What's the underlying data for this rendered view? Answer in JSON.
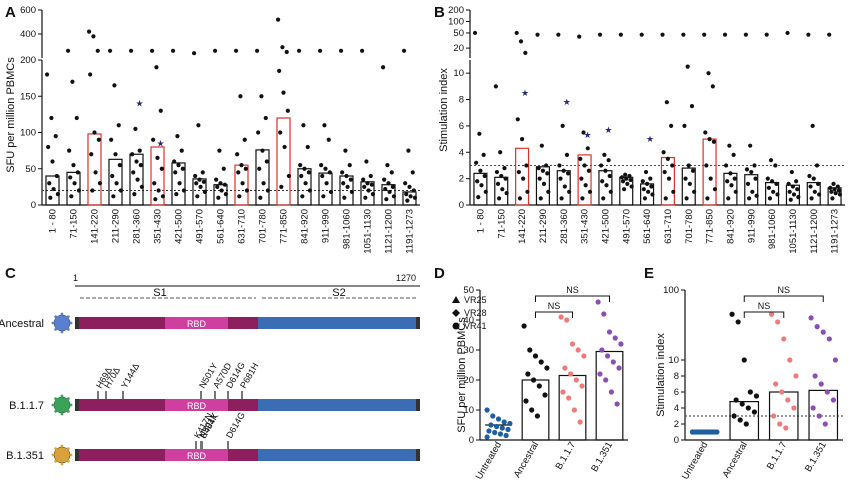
{
  "panels": {
    "A": "A",
    "B": "B",
    "C": "C",
    "D": "D",
    "E": "E"
  },
  "colors": {
    "highlight": "#d9342b",
    "ancestral": "#111111",
    "b117": "#f07a7a",
    "b1351": "#8a4fb0",
    "untreated": "#1d5f9f",
    "star": "#2a2a7a",
    "s1": "#8e1f5f",
    "rbd": "#cf3f9f",
    "s2": "#3a6db3"
  },
  "chart_data": [
    {
      "panel": "A",
      "type": "bar",
      "ylabel": "SFU per million PBMCs",
      "yaxis": {
        "lower_ticks": [
          0,
          50,
          100,
          150,
          200
        ],
        "upper_ticks": [
          200,
          400,
          600
        ],
        "lower_range": [
          0,
          200
        ],
        "upper_range": [
          200,
          600
        ]
      },
      "threshold": 20,
      "categories": [
        "1 - 80",
        "71-150",
        "141-220",
        "211-290",
        "281-360",
        "351-430",
        "421-500",
        "491-570",
        "561-640",
        "631-710",
        "701-780",
        "771-850",
        "841-920",
        "911-990",
        "981-1060",
        "1051-1130",
        "1121-1200",
        "1191-1273"
      ],
      "values": [
        40,
        45,
        98,
        63,
        70,
        80,
        58,
        36,
        28,
        55,
        76,
        120,
        50,
        44,
        40,
        32,
        28,
        18
      ],
      "highlighted": [
        2,
        5,
        9,
        11
      ],
      "points": [
        [
          180,
          120,
          95,
          80,
          60,
          40,
          30,
          22,
          15,
          10
        ],
        [
          260,
          170,
          120,
          75,
          55,
          45,
          38,
          30,
          20,
          12
        ],
        [
          420,
          380,
          260,
          180,
          100,
          90,
          70,
          45,
          30,
          20
        ],
        [
          260,
          165,
          110,
          90,
          70,
          55,
          40,
          30,
          20,
          12
        ],
        [
          260,
          105,
          75,
          70,
          60,
          55,
          45,
          35,
          25,
          15
        ],
        [
          260,
          190,
          130,
          90,
          65,
          50,
          30,
          20,
          12,
          8
        ],
        [
          260,
          95,
          75,
          60,
          55,
          50,
          45,
          30,
          20,
          15
        ],
        [
          240,
          110,
          45,
          40,
          35,
          32,
          30,
          25,
          18,
          12
        ],
        [
          260,
          75,
          50,
          35,
          30,
          28,
          25,
          20,
          15,
          10
        ],
        [
          260,
          150,
          90,
          70,
          55,
          50,
          45,
          30,
          20,
          12
        ],
        [
          260,
          150,
          120,
          100,
          75,
          60,
          50,
          30,
          20,
          10
        ],
        [
          520,
          290,
          250,
          185,
          155,
          130,
          100,
          80,
          40,
          25
        ],
        [
          260,
          110,
          80,
          55,
          50,
          45,
          40,
          30,
          20,
          12
        ],
        [
          260,
          110,
          90,
          55,
          50,
          45,
          40,
          30,
          18,
          12
        ],
        [
          260,
          75,
          55,
          45,
          40,
          35,
          30,
          25,
          18,
          10
        ],
        [
          260,
          60,
          40,
          35,
          30,
          28,
          25,
          20,
          15,
          10
        ],
        [
          190,
          55,
          45,
          35,
          30,
          25,
          22,
          18,
          12,
          8
        ],
        [
          260,
          75,
          45,
          30,
          25,
          20,
          15,
          12,
          10,
          6
        ]
      ],
      "stars": [
        [],
        [],
        [],
        [],
        [
          140
        ],
        [
          85
        ],
        [],
        [],
        [],
        [],
        [],
        [],
        [],
        [],
        [],
        [],
        [],
        []
      ]
    },
    {
      "panel": "B",
      "type": "bar",
      "ylabel": "Stimulation index",
      "yaxis": {
        "lower_ticks": [
          0,
          2,
          4,
          6,
          8,
          10
        ],
        "upper_ticks": [
          20,
          50,
          100,
          200
        ],
        "lower_range": [
          0,
          11
        ],
        "upper_range": [
          11,
          200
        ]
      },
      "threshold": 3,
      "categories": [
        "1 - 80",
        "71-150",
        "141-220",
        "211-290",
        "281-360",
        "351-430",
        "421-500",
        "491-570",
        "561-640",
        "631-710",
        "701-780",
        "771-850",
        "841-920",
        "911-990",
        "981-1060",
        "1051-1130",
        "1121-1200",
        "1191-1273"
      ],
      "values": [
        2.4,
        2.1,
        4.3,
        2.9,
        2.6,
        3.8,
        2.6,
        2.1,
        1.6,
        3.6,
        2.8,
        5.0,
        2.4,
        2.3,
        1.7,
        1.5,
        1.7,
        1.3
      ],
      "highlighted": [
        2,
        5,
        9,
        11
      ],
      "points": [
        [
          50,
          5.4,
          3.8,
          3.2,
          2.6,
          2.2,
          1.8,
          1.5,
          1.0,
          0.6
        ],
        [
          9.0,
          4.0,
          2.8,
          2.5,
          2.2,
          2.0,
          1.6,
          1.2,
          0.9,
          0.5
        ],
        [
          50,
          30,
          15,
          6.5,
          5.0,
          3.0,
          2.5,
          2.0,
          1.0,
          0.5
        ],
        [
          45,
          4.5,
          3.0,
          2.8,
          2.6,
          2.4,
          2.0,
          1.6,
          1.0,
          0.5
        ],
        [
          45,
          6.0,
          3.8,
          3.0,
          2.6,
          2.4,
          2.0,
          1.4,
          1.0,
          0.5
        ],
        [
          40,
          5.5,
          4.3,
          3.5,
          3.0,
          2.6,
          2.0,
          1.5,
          1.0,
          0.5
        ],
        [
          45,
          3.8,
          3.4,
          3.0,
          2.6,
          2.2,
          1.8,
          1.5,
          1.0,
          0.5
        ],
        [
          45,
          2.3,
          2.2,
          2.1,
          2.0,
          1.9,
          1.8,
          1.6,
          1.4,
          1.2
        ],
        [
          45,
          2.5,
          2.0,
          1.8,
          1.6,
          1.4,
          1.2,
          1.0,
          0.8,
          0.5
        ],
        [
          45,
          7.8,
          6.0,
          4.0,
          3.5,
          3.0,
          2.5,
          2.0,
          1.0,
          0.5
        ],
        [
          45,
          10.5,
          7.5,
          6.0,
          3.0,
          2.6,
          2.0,
          1.6,
          1.0,
          0.5
        ],
        [
          45,
          10.0,
          9.0,
          5.5,
          5.0,
          4.8,
          3.0,
          2.0,
          1.2,
          0.5
        ],
        [
          45,
          4.5,
          3.8,
          3.0,
          2.4,
          2.0,
          1.8,
          1.5,
          1.0,
          0.5
        ],
        [
          45,
          4.5,
          3.0,
          2.7,
          2.5,
          2.0,
          1.6,
          1.0,
          0.7,
          0.5
        ],
        [
          45,
          3.4,
          3.0,
          2.0,
          1.8,
          1.6,
          1.3,
          1.0,
          0.8,
          0.5
        ],
        [
          50,
          2.5,
          1.8,
          1.6,
          1.4,
          1.2,
          1.0,
          0.8,
          0.6,
          0.4
        ],
        [
          45,
          6.0,
          3.0,
          2.2,
          2.0,
          1.6,
          1.4,
          1.0,
          0.8,
          0.5
        ],
        [
          45,
          1.6,
          1.4,
          1.3,
          1.2,
          1.1,
          1.0,
          0.9,
          0.8,
          0.5
        ]
      ],
      "stars": [
        [],
        [],
        [
          8.5
        ],
        [],
        [
          7.8
        ],
        [
          5.3
        ],
        [
          5.7
        ],
        [],
        [
          5.0
        ],
        [],
        [],
        [],
        [],
        [],
        [],
        [],
        [],
        []
      ]
    },
    {
      "panel": "D",
      "type": "bar",
      "ylabel": "SFU per million PBMCs",
      "yaxis": {
        "ticks": [
          0,
          10,
          20,
          30,
          40,
          50
        ],
        "range": [
          0,
          50
        ]
      },
      "categories": [
        "Untreated",
        "Ancestral",
        "B.1.1.7",
        "B.1.351"
      ],
      "values": [
        5,
        20,
        21.5,
        29.5
      ],
      "legend": [
        {
          "marker": "triangle",
          "label": "VR25"
        },
        {
          "marker": "diamond",
          "label": "VR28"
        },
        {
          "marker": "circle",
          "label": "VR41"
        }
      ],
      "comparisons": [
        {
          "from": "Ancestral",
          "to": "B.1.1.7",
          "label": "NS"
        },
        {
          "from": "Ancestral",
          "to": "B.1.351",
          "label": "NS"
        }
      ],
      "points": [
        [
          10,
          8,
          7,
          6,
          5.5,
          5,
          4.5,
          4,
          3.5,
          3,
          2.5,
          2,
          1.5,
          1
        ],
        [
          38,
          30,
          28,
          26,
          24,
          22,
          20,
          18,
          15,
          13,
          10,
          8
        ],
        [
          41,
          40,
          32,
          30,
          28,
          24,
          22,
          20,
          18,
          16,
          14,
          10,
          6
        ],
        [
          46,
          42,
          36,
          34,
          32,
          30,
          28,
          26,
          24,
          22,
          20,
          16,
          12
        ]
      ]
    },
    {
      "panel": "E",
      "type": "bar",
      "ylabel": "Stimulation index",
      "yaxis": {
        "ticks": [
          0,
          2,
          4,
          6,
          8,
          10,
          100
        ],
        "range": [
          0,
          100
        ]
      },
      "threshold": 3,
      "categories": [
        "Untreated",
        "Ancestral",
        "B.1.1.7",
        "B.1.351"
      ],
      "values": [
        1,
        4.8,
        6.0,
        6.2
      ],
      "comparisons": [
        {
          "from": "Ancestral",
          "to": "B.1.1.7",
          "label": "NS"
        },
        {
          "from": "Ancestral",
          "to": "B.1.351",
          "label": "NS"
        }
      ],
      "points": [
        [
          1,
          1,
          1,
          1,
          1,
          1,
          1,
          1,
          1,
          1,
          1,
          1,
          1,
          1
        ],
        [
          45,
          35,
          10,
          6,
          5.5,
          5,
          4.5,
          4,
          3.5,
          3,
          2.5,
          2
        ],
        [
          45,
          35,
          20,
          10,
          8,
          7,
          6,
          5,
          4,
          3,
          2,
          1.5
        ],
        [
          40,
          30,
          25,
          20,
          10,
          8,
          7,
          6,
          5,
          4,
          3,
          2
        ]
      ]
    }
  ],
  "schematic": {
    "start": "1",
    "end": "1270",
    "labels": {
      "s1": "S1",
      "rbd": "RBD",
      "s2": "S2"
    },
    "variants": [
      {
        "name": "Ancestral",
        "mutations": []
      },
      {
        "name": "B.1.1.7",
        "mutations": [
          "H69Δ",
          "H70Δ",
          "Y144Δ",
          "N501Y",
          "A570D",
          "D614G",
          "P681H"
        ]
      },
      {
        "name": "B.1.351",
        "mutations": [
          "K417N",
          "E484K",
          "N501Y",
          "D614G"
        ]
      }
    ]
  }
}
